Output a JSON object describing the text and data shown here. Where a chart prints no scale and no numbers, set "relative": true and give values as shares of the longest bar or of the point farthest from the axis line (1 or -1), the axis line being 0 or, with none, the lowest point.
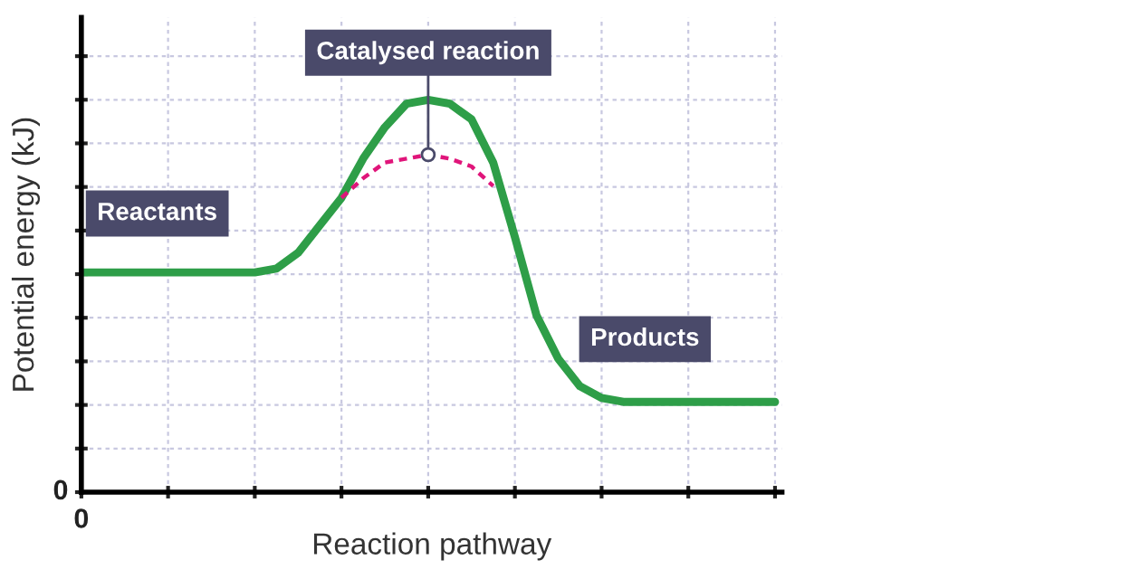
{
  "chart_data": {
    "type": "line",
    "relative": true,
    "xlabel": "Reaction pathway",
    "ylabel": "Potential energy (kJ)",
    "grid": true,
    "legend": false,
    "categories": [
      null,
      null,
      null,
      null,
      null,
      null,
      null,
      null,
      null,
      null,
      null,
      null,
      null,
      null,
      null,
      null,
      null,
      null,
      null,
      null,
      null,
      null,
      null,
      null,
      null,
      null,
      null,
      null,
      null,
      null,
      null,
      null,
      null
    ],
    "series": [
      {
        "color": "#2e9e48",
        "line_style": "solid",
        "values": [
          0.56,
          0.56,
          0.56,
          0.56,
          0.56,
          0.56,
          0.56,
          0.56,
          0.56,
          0.57,
          0.61,
          0.68,
          0.75,
          0.85,
          0.93,
          0.99,
          1,
          0.99,
          0.95,
          0.84,
          0.65,
          0.45,
          0.34,
          0.27,
          0.24,
          0.23,
          0.23,
          0.23,
          0.23,
          0.23,
          0.23,
          0.23,
          0.23
        ]
      },
      {
        "color": "#e0157a",
        "line_style": "dashed",
        "values": [
          null,
          null,
          null,
          null,
          null,
          null,
          null,
          null,
          null,
          null,
          null,
          null,
          0.75,
          0.8,
          0.84,
          0.85,
          0.86,
          0.85,
          0.83,
          0.78,
          null,
          null,
          null,
          null,
          null,
          null,
          null,
          null,
          null,
          null,
          null,
          null,
          null
        ]
      }
    ],
    "annotations": [
      "Reactants",
      "Catalysed reaction",
      "Products",
      "0",
      "0"
    ]
  }
}
